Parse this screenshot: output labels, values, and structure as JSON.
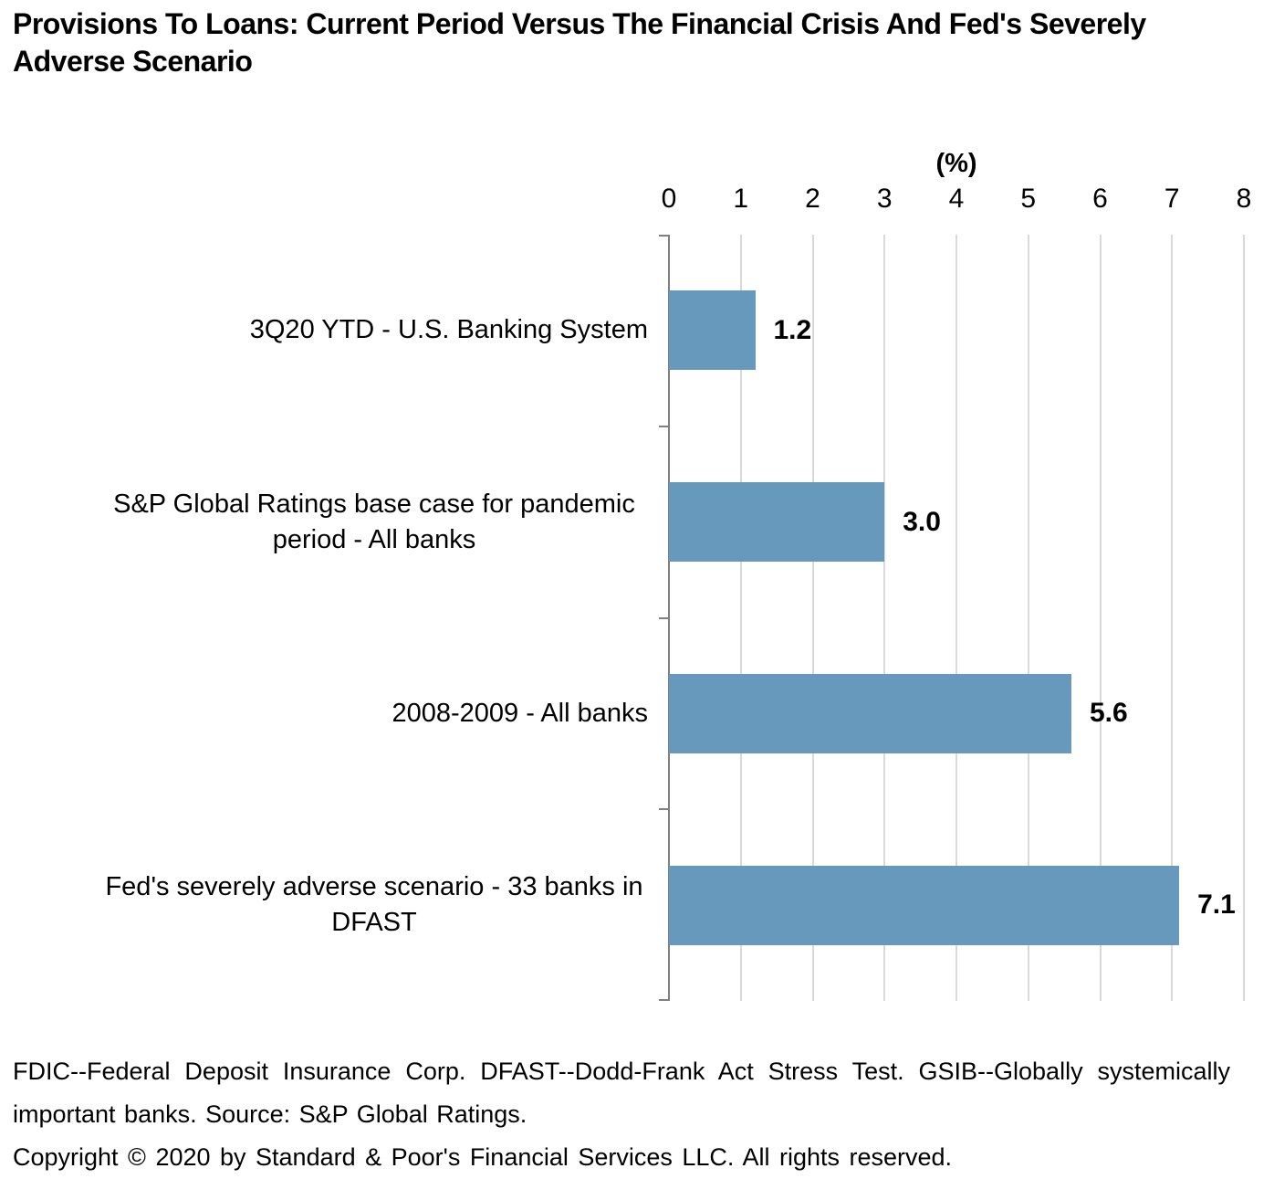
{
  "title": "Provisions To Loans: Current Period Versus The Financial Crisis And Fed's Severely Adverse Scenario",
  "chart_data": {
    "type": "bar",
    "orientation": "horizontal",
    "title": "Provisions To Loans: Current Period Versus The Financial Crisis And Fed's Severely Adverse Scenario",
    "xlabel": "(%)",
    "ylabel": "",
    "categories": [
      "3Q20 YTD - U.S. Banking System",
      "S&P Global Ratings base case for pandemic period - All banks",
      "2008-2009 - All banks",
      "Fed's severely adverse scenario - 33 banks in DFAST"
    ],
    "values": [
      1.2,
      3.0,
      5.6,
      7.1
    ],
    "value_labels": [
      "1.2",
      "3.0",
      "5.6",
      "7.1"
    ],
    "axis": {
      "min": 0,
      "max": 8,
      "ticks": [
        0,
        1,
        2,
        3,
        4,
        5,
        6,
        7,
        8
      ]
    },
    "grid": true,
    "legend_position": "none",
    "colors": {
      "bar": "#6699bb",
      "gridline": "#d9d9d9",
      "axis_line": "#7f7f7f",
      "text": "#000000"
    }
  },
  "footnote": {
    "definitions": "FDIC--Federal Deposit Insurance Corp. DFAST--Dodd-Frank Act Stress Test. GSIB--Globally systemically important banks. Source: S&P Global Ratings.",
    "copyright": "Copyright © 2020 by Standard & Poor's Financial Services LLC. All rights reserved."
  }
}
